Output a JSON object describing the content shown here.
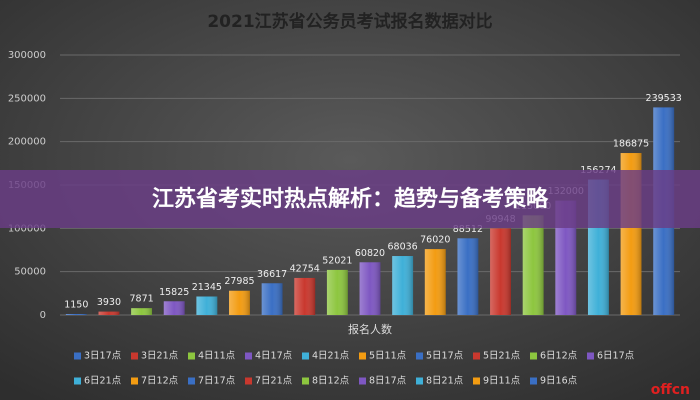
{
  "chart_data": {
    "type": "bar",
    "title": "2021江苏省公务员考试报名数据对比",
    "x_label": "报名人数",
    "categories": [
      "3日17点",
      "3日21点",
      "4日11点",
      "4日17点",
      "4日21点",
      "5日11点",
      "5日17点",
      "5日21点",
      "6日12点",
      "6日17点",
      "6日21点",
      "7日12点",
      "7日17点",
      "7日21点",
      "8日12点",
      "8日17点",
      "8日21点",
      "9日11点",
      "9日16点"
    ],
    "values": [
      1150,
      3930,
      7871,
      15825,
      21345,
      27985,
      36617,
      42754,
      52021,
      60820,
      68036,
      76020,
      88512,
      99948,
      115000,
      132000,
      156274,
      186875,
      239533
    ],
    "colors": [
      "#3a6fc4",
      "#c9382e",
      "#8dc63f",
      "#7e57c2",
      "#3fb0d8",
      "#f39c12",
      "#3a6fc4",
      "#c9382e",
      "#8dc63f",
      "#7e57c2",
      "#3fb0d8",
      "#f39c12",
      "#3a6fc4",
      "#c9382e",
      "#8dc63f",
      "#7e57c2",
      "#3fb0d8",
      "#f39c12",
      "#3a6fc4"
    ],
    "ylim": [
      0,
      300000
    ],
    "yticks": [
      0,
      50000,
      100000,
      150000,
      200000,
      250000,
      300000
    ],
    "grid": true,
    "legend": "bottom"
  },
  "overlay": {
    "banner": "江苏省考实时热点解析：趋势与备考策略",
    "watermark": "offcn"
  }
}
